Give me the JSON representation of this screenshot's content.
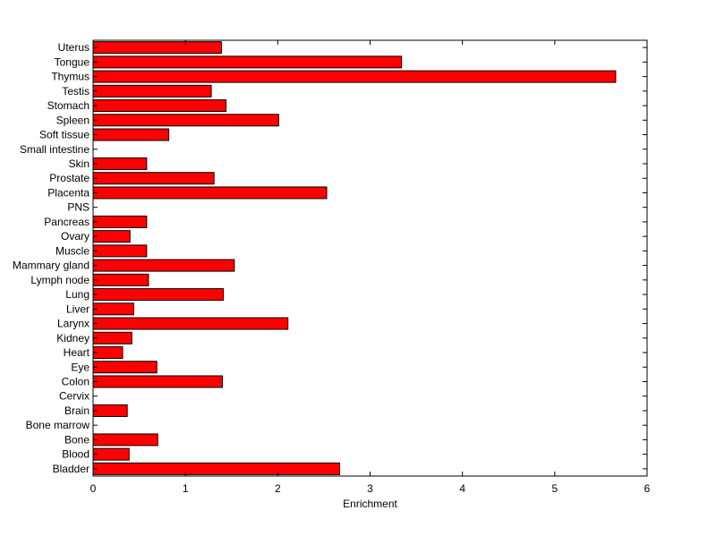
{
  "chart_data": {
    "type": "bar",
    "orientation": "horizontal",
    "title": "",
    "xlabel": "Enrichment",
    "ylabel": "",
    "xlim": [
      0,
      6
    ],
    "xticks": [
      0,
      1,
      2,
      3,
      4,
      5,
      6
    ],
    "grid": false,
    "bar_color": "#ff0000",
    "edge_color": "#000000",
    "categories": [
      "Uterus",
      "Tongue",
      "Thymus",
      "Testis",
      "Stomach",
      "Spleen",
      "Soft tissue",
      "Small intestine",
      "Skin",
      "Prostate",
      "Placenta",
      "PNS",
      "Pancreas",
      "Ovary",
      "Muscle",
      "Mammary gland",
      "Lymph node",
      "Lung",
      "Liver",
      "Larynx",
      "Kidney",
      "Heart",
      "Eye",
      "Colon",
      "Cervix",
      "Brain",
      "Bone marrow",
      "Bone",
      "Blood",
      "Bladder"
    ],
    "values": [
      1.39,
      3.34,
      5.66,
      1.28,
      1.44,
      2.01,
      0.82,
      0,
      0.58,
      1.31,
      2.53,
      0,
      0.58,
      0.4,
      0.58,
      1.53,
      0.6,
      1.41,
      0.44,
      2.11,
      0.42,
      0.32,
      0.69,
      1.4,
      0,
      0.37,
      0,
      0.7,
      0.39,
      2.67
    ]
  }
}
